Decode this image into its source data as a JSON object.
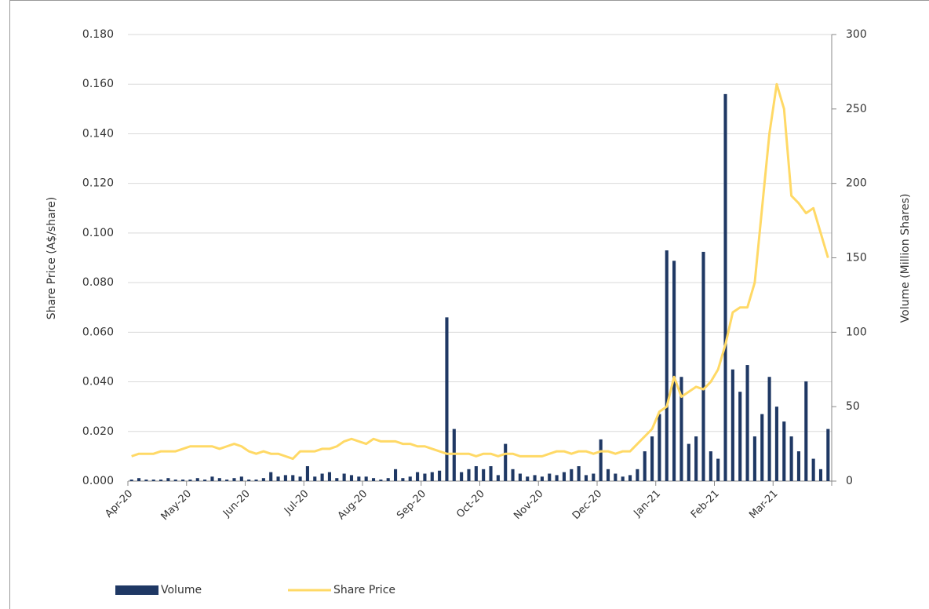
{
  "chart_data": {
    "type": "bar-line",
    "y_label": "Share Price (A$/share)",
    "y2_label": "Volume (Million Shares)",
    "categories": [
      "Apr-20",
      null,
      null,
      null,
      null,
      null,
      null,
      null,
      "May-20",
      null,
      null,
      null,
      null,
      null,
      null,
      null,
      "Jun-20",
      null,
      null,
      null,
      null,
      null,
      null,
      null,
      "Jul-20",
      null,
      null,
      null,
      null,
      null,
      null,
      null,
      "Aug-20",
      null,
      null,
      null,
      null,
      null,
      null,
      null,
      "Sep-20",
      null,
      null,
      null,
      null,
      null,
      null,
      null,
      "Oct-20",
      null,
      null,
      null,
      null,
      null,
      null,
      null,
      "Nov-20",
      null,
      null,
      null,
      null,
      null,
      null,
      null,
      "Dec-20",
      null,
      null,
      null,
      null,
      null,
      null,
      null,
      "Jan-21",
      null,
      null,
      null,
      null,
      null,
      null,
      null,
      "Feb-21",
      null,
      null,
      null,
      null,
      null,
      null,
      null,
      "Mar-21",
      null,
      null,
      null,
      null,
      null,
      null,
      null
    ],
    "series": [
      {
        "name": "Volume",
        "type": "bar",
        "axis": "y2",
        "color": "#1f3864",
        "values": [
          1,
          2,
          1,
          1,
          1,
          2,
          1,
          1,
          1,
          2,
          1,
          3,
          2,
          1,
          2,
          3,
          1,
          1,
          2,
          6,
          3,
          4,
          4,
          3,
          10,
          3,
          5,
          6,
          2,
          5,
          4,
          3,
          3,
          2,
          1,
          2,
          8,
          2,
          3,
          6,
          5,
          6,
          7,
          110,
          35,
          6,
          8,
          10,
          8,
          10,
          4,
          25,
          8,
          5,
          3,
          4,
          3,
          5,
          4,
          6,
          8,
          10,
          4,
          5,
          28,
          8,
          5,
          3,
          4,
          8,
          20,
          30,
          45,
          155,
          148,
          70,
          25,
          30,
          154,
          20,
          15,
          260,
          75,
          60,
          78,
          30,
          45,
          70,
          50,
          40,
          30,
          20,
          67,
          15,
          8,
          35
        ]
      },
      {
        "name": "Share Price",
        "type": "line",
        "axis": "y",
        "color": "#ffd966",
        "values": [
          0.01,
          0.011,
          0.011,
          0.011,
          0.012,
          0.012,
          0.012,
          0.013,
          0.014,
          0.014,
          0.014,
          0.014,
          0.013,
          0.014,
          0.015,
          0.014,
          0.012,
          0.011,
          0.012,
          0.011,
          0.011,
          0.01,
          0.009,
          0.012,
          0.012,
          0.012,
          0.013,
          0.013,
          0.014,
          0.016,
          0.017,
          0.016,
          0.015,
          0.017,
          0.016,
          0.016,
          0.016,
          0.015,
          0.015,
          0.014,
          0.014,
          0.013,
          0.012,
          0.011,
          0.011,
          0.011,
          0.011,
          0.01,
          0.011,
          0.011,
          0.01,
          0.011,
          0.011,
          0.01,
          0.01,
          0.01,
          0.01,
          0.011,
          0.012,
          0.012,
          0.011,
          0.012,
          0.012,
          0.011,
          0.012,
          0.012,
          0.011,
          0.012,
          0.012,
          0.015,
          0.018,
          0.021,
          0.028,
          0.03,
          0.042,
          0.034,
          0.036,
          0.038,
          0.037,
          0.04,
          0.045,
          0.055,
          0.068,
          0.07,
          0.07,
          0.08,
          0.11,
          0.14,
          0.16,
          0.15,
          0.115,
          0.112,
          0.108,
          0.11,
          0.1,
          0.09
        ]
      }
    ],
    "ylim": [
      0,
      0.18
    ],
    "yticks": [
      {
        "value": 0,
        "label": "0.000"
      },
      {
        "value": 0.02,
        "label": "0.020"
      },
      {
        "value": 0.04,
        "label": "0.040"
      },
      {
        "value": 0.06,
        "label": "0.060"
      },
      {
        "value": 0.08,
        "label": "0.080"
      },
      {
        "value": 0.1,
        "label": "0.100"
      },
      {
        "value": 0.12,
        "label": "0.120"
      },
      {
        "value": 0.14,
        "label": "0.140"
      },
      {
        "value": 0.16,
        "label": "0.160"
      },
      {
        "value": 0.18,
        "label": "0.180"
      }
    ],
    "y2lim": [
      0,
      300
    ],
    "y2ticks": [
      0,
      50,
      100,
      150,
      200,
      250,
      300
    ],
    "grid": true,
    "legend": "bottom-left"
  }
}
